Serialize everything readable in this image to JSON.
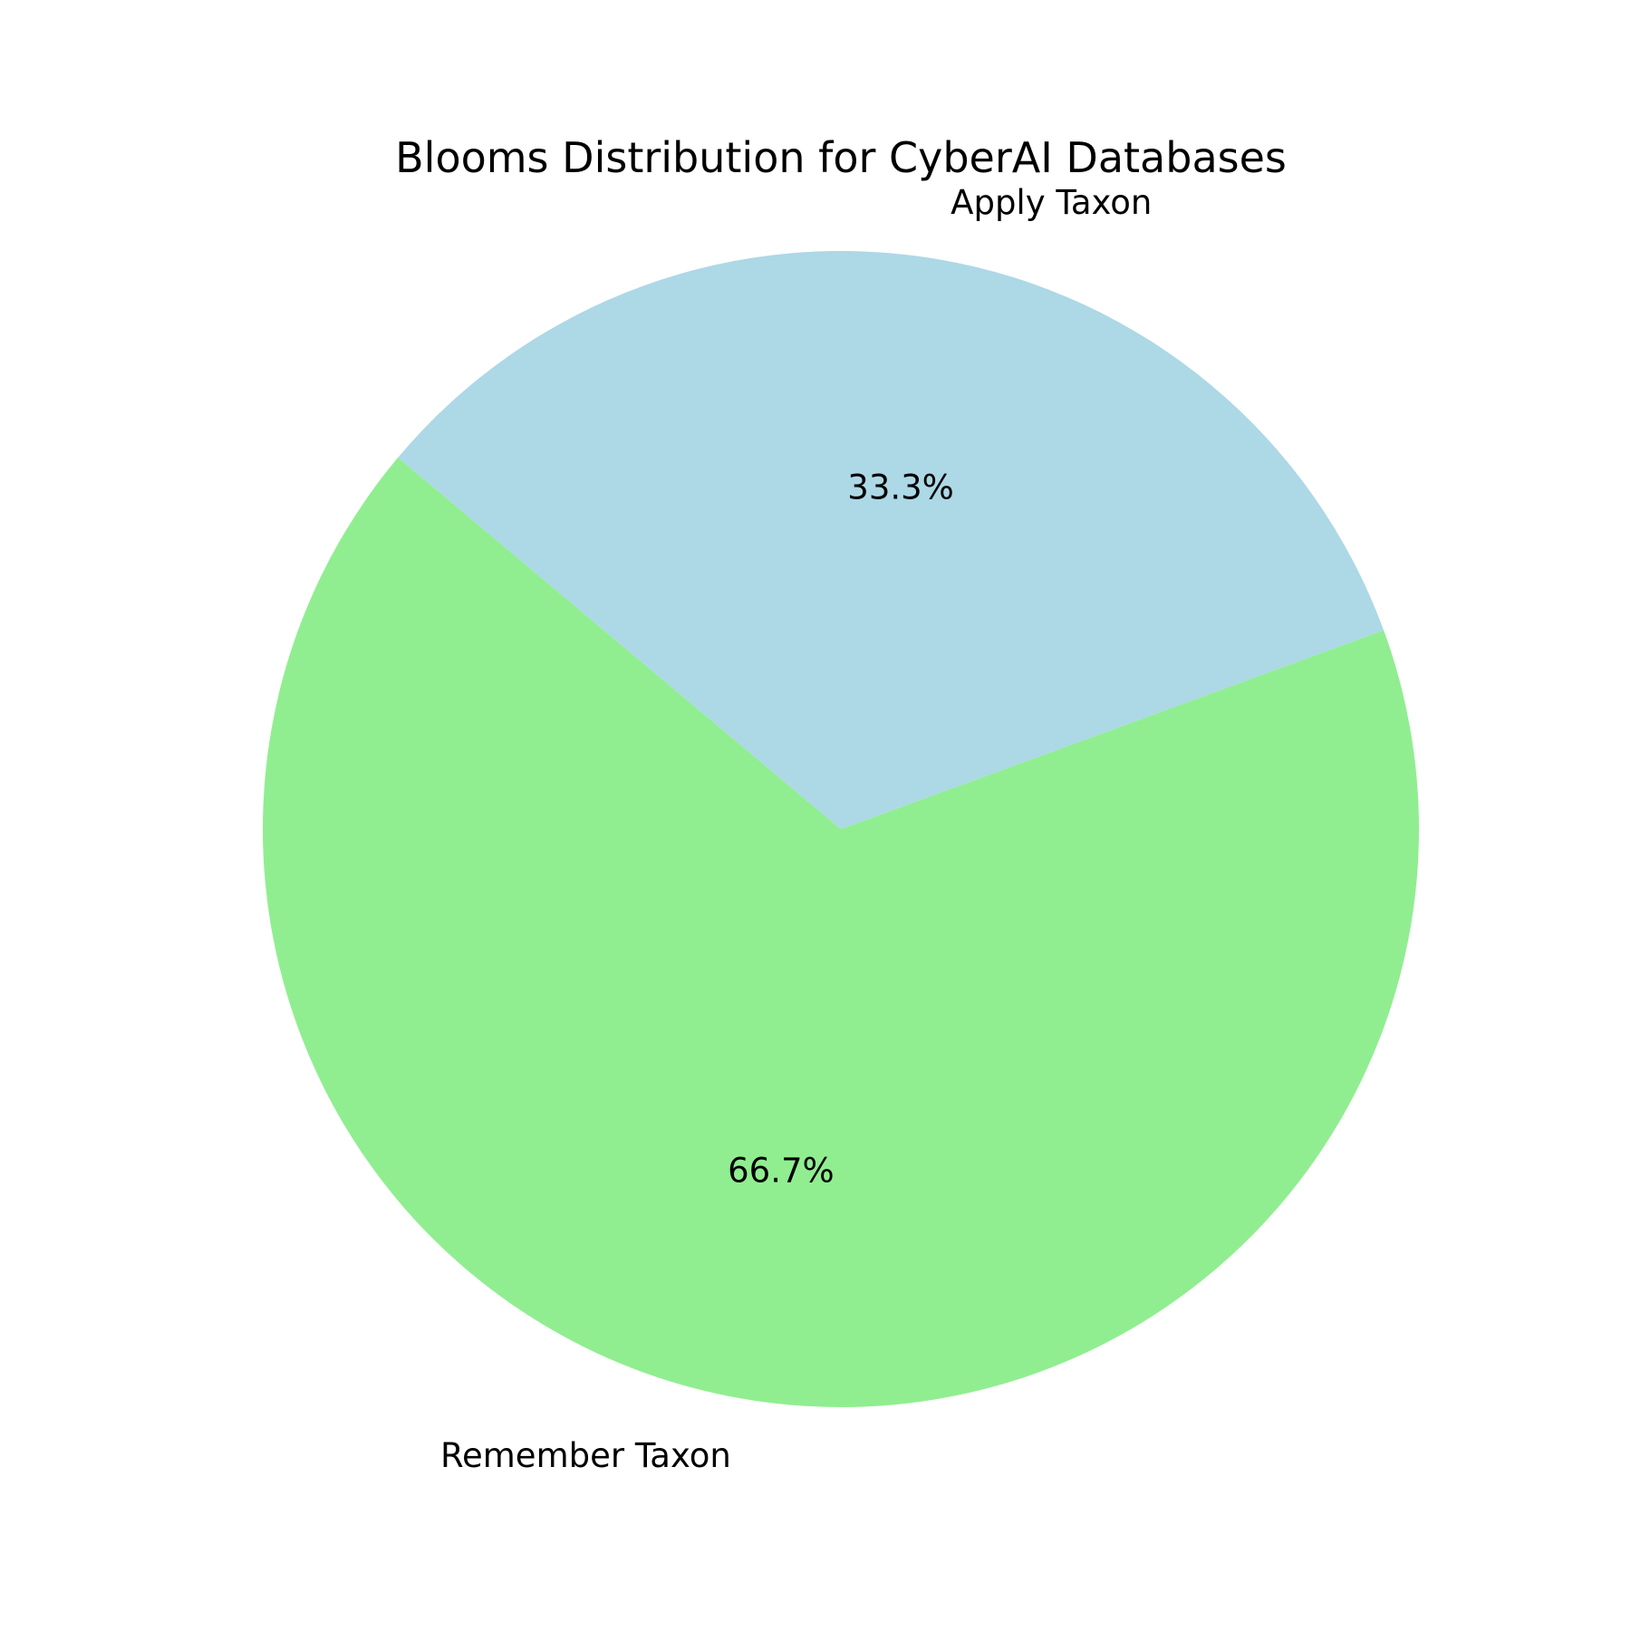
{
  "chart_data": {
    "type": "pie",
    "title": "Blooms Distribution for CyberAI Databases",
    "slices": [
      {
        "label": "Remember Taxon",
        "value": 66.7,
        "pct_label": "66.7%",
        "color": "#90ee90"
      },
      {
        "label": "Apply Taxon",
        "value": 33.3,
        "pct_label": "33.3%",
        "color": "#add8e6"
      }
    ],
    "start_angle_deg": 140,
    "direction": "counterclockwise",
    "legend": "none"
  }
}
